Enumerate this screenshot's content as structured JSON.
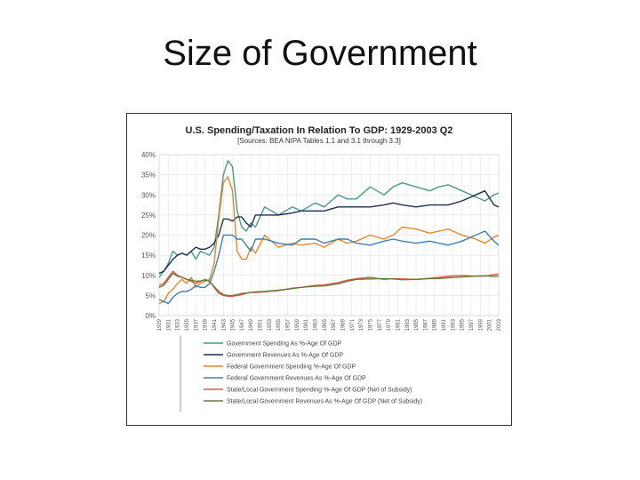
{
  "slide": {
    "title": "Size of Government"
  },
  "chart_data": {
    "type": "line",
    "title": "U.S. Spending/Taxation In Relation To GDP:  1929-2003 Q2",
    "subtitle": "[Sources:  BEA NIPA Tables 1.1 and 3.1 through 3.3]",
    "xlabel": "",
    "ylabel": "",
    "ylim": [
      0,
      40
    ],
    "yticks": [
      "0%",
      "5%",
      "10%",
      "15%",
      "20%",
      "25%",
      "30%",
      "35%",
      "40%"
    ],
    "xlim": [
      1929,
      2003
    ],
    "xticks": [
      "1929",
      "1931",
      "1933",
      "1935",
      "1937",
      "1939",
      "1941",
      "1943",
      "1945",
      "1947",
      "1949",
      "1951",
      "1953",
      "1955",
      "1957",
      "1959",
      "1961",
      "1963",
      "1965",
      "1967",
      "1969",
      "1971",
      "1973",
      "1975",
      "1977",
      "1979",
      "1981",
      "1983",
      "1985",
      "1987",
      "1989",
      "1991",
      "1993",
      "1995",
      "1997",
      "1999",
      "2001",
      "2003"
    ],
    "grid": true,
    "legend_position": "bottom",
    "series": [
      {
        "name": "Government Spending As %-Age Of GDP",
        "color": "#4a9a86",
        "x": [
          1929,
          1930,
          1931,
          1932,
          1933,
          1934,
          1935,
          1936,
          1937,
          1938,
          1939,
          1940,
          1941,
          1942,
          1943,
          1944,
          1945,
          1946,
          1947,
          1948,
          1949,
          1950,
          1952,
          1955,
          1958,
          1960,
          1963,
          1965,
          1968,
          1970,
          1972,
          1975,
          1978,
          1980,
          1982,
          1985,
          1988,
          1990,
          1992,
          1995,
          1998,
          2000,
          2002,
          2003
        ],
        "y": [
          9.5,
          11,
          13,
          16,
          15,
          15.5,
          15,
          16,
          14,
          16,
          15.5,
          15,
          17,
          25,
          35,
          38.5,
          37,
          26,
          22,
          21,
          23,
          22,
          27,
          25,
          27,
          26,
          28,
          27,
          30,
          29,
          29,
          32,
          30,
          32,
          33,
          32,
          31,
          32,
          32.5,
          31,
          29.5,
          28.5,
          30,
          30.5
        ]
      },
      {
        "name": "Government Revenues As %-Age Of GDP",
        "color": "#1d2f52",
        "x": [
          1929,
          1930,
          1931,
          1932,
          1933,
          1934,
          1935,
          1936,
          1937,
          1938,
          1939,
          1940,
          1941,
          1942,
          1943,
          1944,
          1945,
          1946,
          1947,
          1948,
          1949,
          1950,
          1952,
          1955,
          1958,
          1960,
          1963,
          1965,
          1968,
          1970,
          1972,
          1975,
          1978,
          1980,
          1982,
          1985,
          1988,
          1990,
          1992,
          1995,
          1998,
          2000,
          2002,
          2003
        ],
        "y": [
          10.5,
          11,
          12.5,
          14,
          15,
          15.5,
          15,
          16,
          17,
          16.5,
          16.5,
          17,
          18,
          20,
          24,
          24,
          23.5,
          24.5,
          24.5,
          23,
          22,
          25,
          25,
          25,
          25.5,
          26,
          26,
          26,
          27,
          27,
          27,
          27,
          27.5,
          28,
          27.5,
          27,
          27.5,
          27.5,
          27.5,
          28.5,
          30,
          31,
          27.5,
          27
        ]
      },
      {
        "name": "Federal Government Spending %-Age Of GDP",
        "color": "#e08a2c",
        "x": [
          1929,
          1930,
          1931,
          1932,
          1933,
          1934,
          1935,
          1936,
          1937,
          1938,
          1939,
          1940,
          1941,
          1942,
          1943,
          1944,
          1945,
          1946,
          1947,
          1948,
          1949,
          1950,
          1952,
          1955,
          1958,
          1960,
          1963,
          1965,
          1968,
          1970,
          1972,
          1975,
          1978,
          1980,
          1982,
          1985,
          1988,
          1990,
          1992,
          1995,
          1998,
          2000,
          2002,
          2003
        ],
        "y": [
          3,
          3.5,
          5.5,
          6.5,
          8,
          9,
          8,
          9.5,
          7,
          8,
          8.5,
          9,
          13,
          24,
          33,
          34.5,
          31,
          16,
          14,
          14,
          17,
          15.5,
          20,
          17,
          18,
          17.5,
          18,
          17,
          19,
          18,
          18.5,
          20,
          19,
          20,
          22,
          21.5,
          20.5,
          21,
          21.5,
          20,
          19,
          18,
          19.5,
          20
        ]
      },
      {
        "name": "Federal Government Revenues As %-Age Of GDP",
        "color": "#3f80b4",
        "x": [
          1929,
          1930,
          1931,
          1932,
          1933,
          1934,
          1935,
          1936,
          1937,
          1938,
          1939,
          1940,
          1941,
          1942,
          1943,
          1944,
          1945,
          1946,
          1947,
          1948,
          1949,
          1950,
          1952,
          1955,
          1958,
          1960,
          1963,
          1965,
          1968,
          1970,
          1972,
          1975,
          1978,
          1980,
          1982,
          1985,
          1988,
          1990,
          1992,
          1995,
          1998,
          2000,
          2002,
          2003
        ],
        "y": [
          4,
          3.5,
          3,
          4.5,
          5.5,
          6,
          6,
          6.5,
          7.5,
          7,
          7,
          8,
          11,
          15,
          20,
          20,
          20,
          19,
          19,
          17.5,
          16,
          19,
          19,
          18,
          17.5,
          19,
          19,
          18,
          19,
          19,
          18,
          17.5,
          18.5,
          19,
          18.5,
          18,
          18.5,
          18,
          17.5,
          18.5,
          20,
          21,
          18.5,
          17.5
        ]
      },
      {
        "name": "State/Local Government Spending %-Age Of GDP (Net of Subsidy)",
        "color": "#e05a4a",
        "x": [
          1929,
          1930,
          1931,
          1932,
          1933,
          1934,
          1935,
          1936,
          1937,
          1938,
          1939,
          1940,
          1941,
          1942,
          1943,
          1944,
          1945,
          1946,
          1947,
          1948,
          1949,
          1950,
          1952,
          1955,
          1958,
          1960,
          1963,
          1965,
          1968,
          1970,
          1972,
          1975,
          1978,
          1980,
          1982,
          1985,
          1988,
          1990,
          1992,
          1995,
          1998,
          2000,
          2002,
          2003
        ],
        "y": [
          7.5,
          8,
          9.5,
          11,
          10,
          9.5,
          9,
          8.5,
          8,
          8.5,
          9,
          8.5,
          7,
          5.5,
          5,
          4.8,
          4.8,
          5,
          5.2,
          5.5,
          5.8,
          5.7,
          5.9,
          6.2,
          6.8,
          7,
          7.5,
          7.6,
          8.2,
          8.8,
          9.2,
          9.5,
          9,
          9.2,
          9.1,
          9,
          9.3,
          9.5,
          9.8,
          10,
          9.8,
          9.8,
          10.2,
          10.3
        ]
      },
      {
        "name": "State/Local Government Revenues As %-Age Of GDP (Net of Subsidy)",
        "color": "#6a7a3a",
        "x": [
          1929,
          1930,
          1931,
          1932,
          1933,
          1934,
          1935,
          1936,
          1937,
          1938,
          1939,
          1940,
          1941,
          1942,
          1943,
          1944,
          1945,
          1946,
          1947,
          1948,
          1949,
          1950,
          1952,
          1955,
          1958,
          1960,
          1963,
          1965,
          1968,
          1970,
          1972,
          1975,
          1978,
          1980,
          1982,
          1985,
          1988,
          1990,
          1992,
          1995,
          1998,
          2000,
          2002,
          2003
        ],
        "y": [
          7,
          7.5,
          9,
          10.5,
          9.8,
          9.5,
          9,
          8.8,
          8.5,
          8.6,
          8.8,
          8.5,
          7.2,
          6,
          5.2,
          5,
          5,
          5.2,
          5.5,
          5.6,
          5.8,
          5.9,
          6,
          6.3,
          6.7,
          7,
          7.3,
          7.4,
          7.9,
          8.5,
          9,
          9.1,
          9.2,
          9.1,
          8.9,
          9,
          9.2,
          9.2,
          9.4,
          9.6,
          9.8,
          9.9,
          9.7,
          9.8
        ]
      }
    ]
  }
}
